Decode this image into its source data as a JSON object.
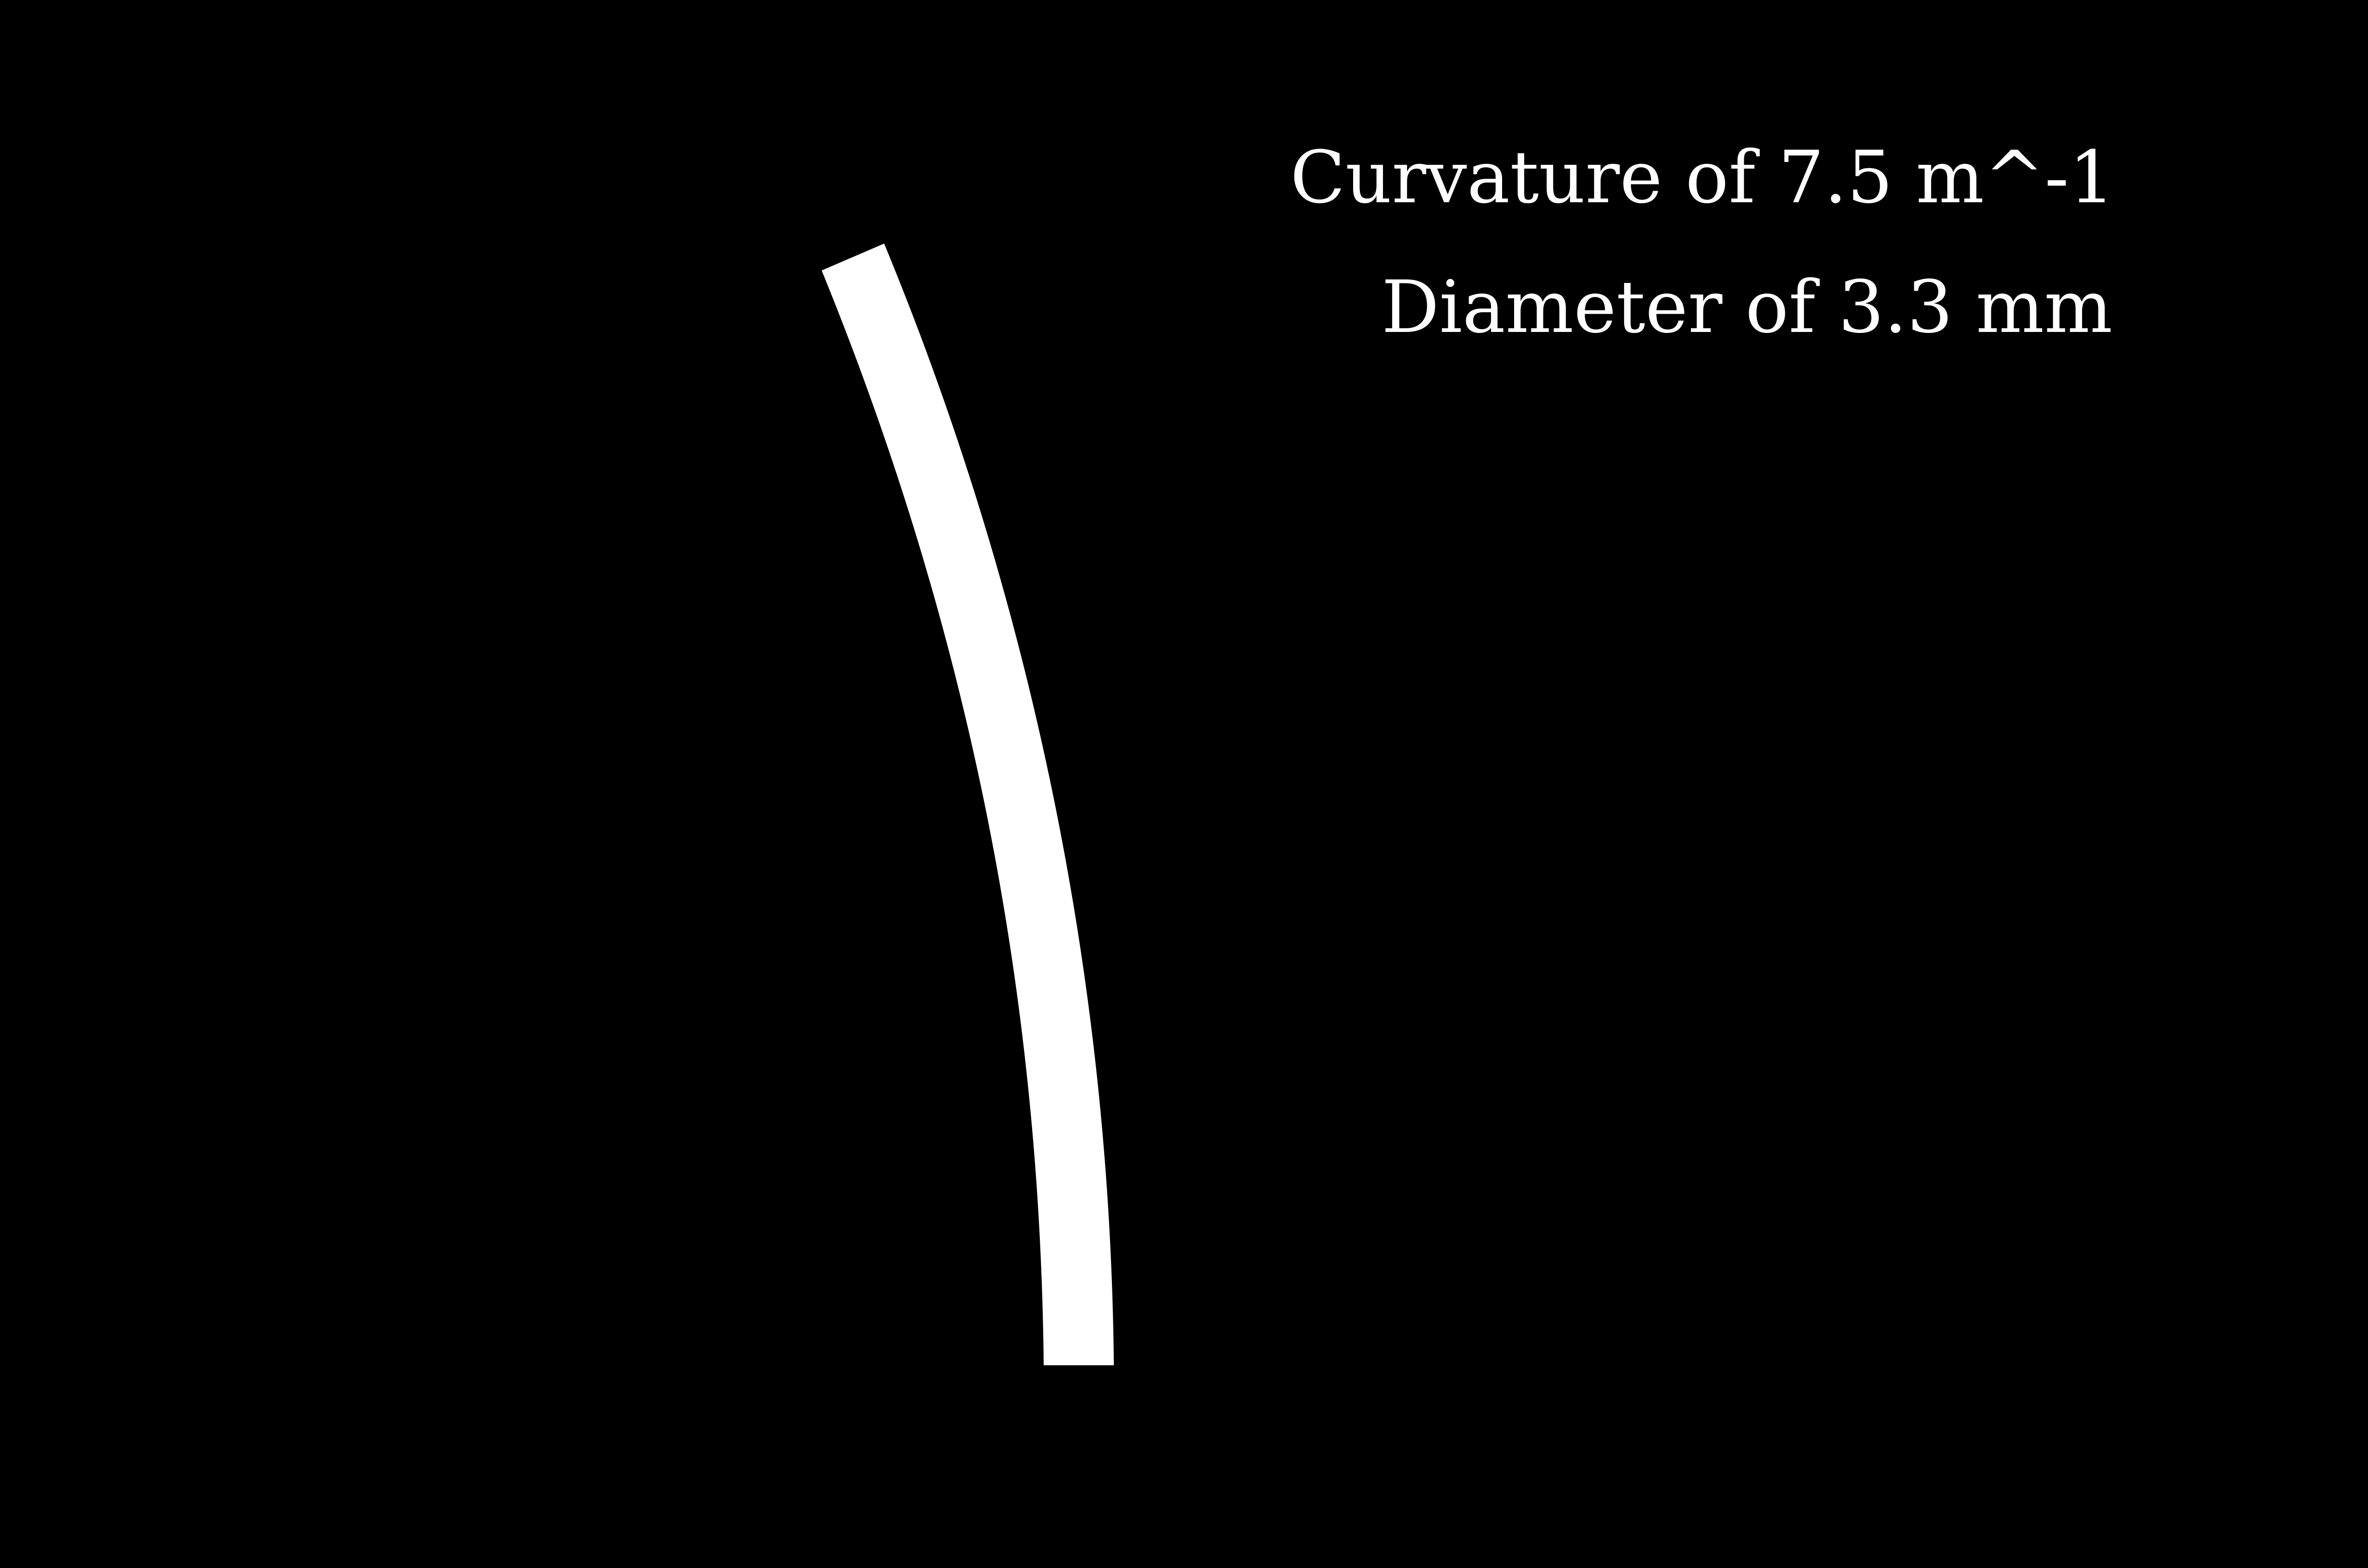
{
  "labels": {
    "curvature": "Curvature of 7.5 m^-1",
    "diameter": "Diameter of 3.3 mm"
  },
  "colors": {
    "background": "#000000",
    "foreground": "#ffffff"
  }
}
